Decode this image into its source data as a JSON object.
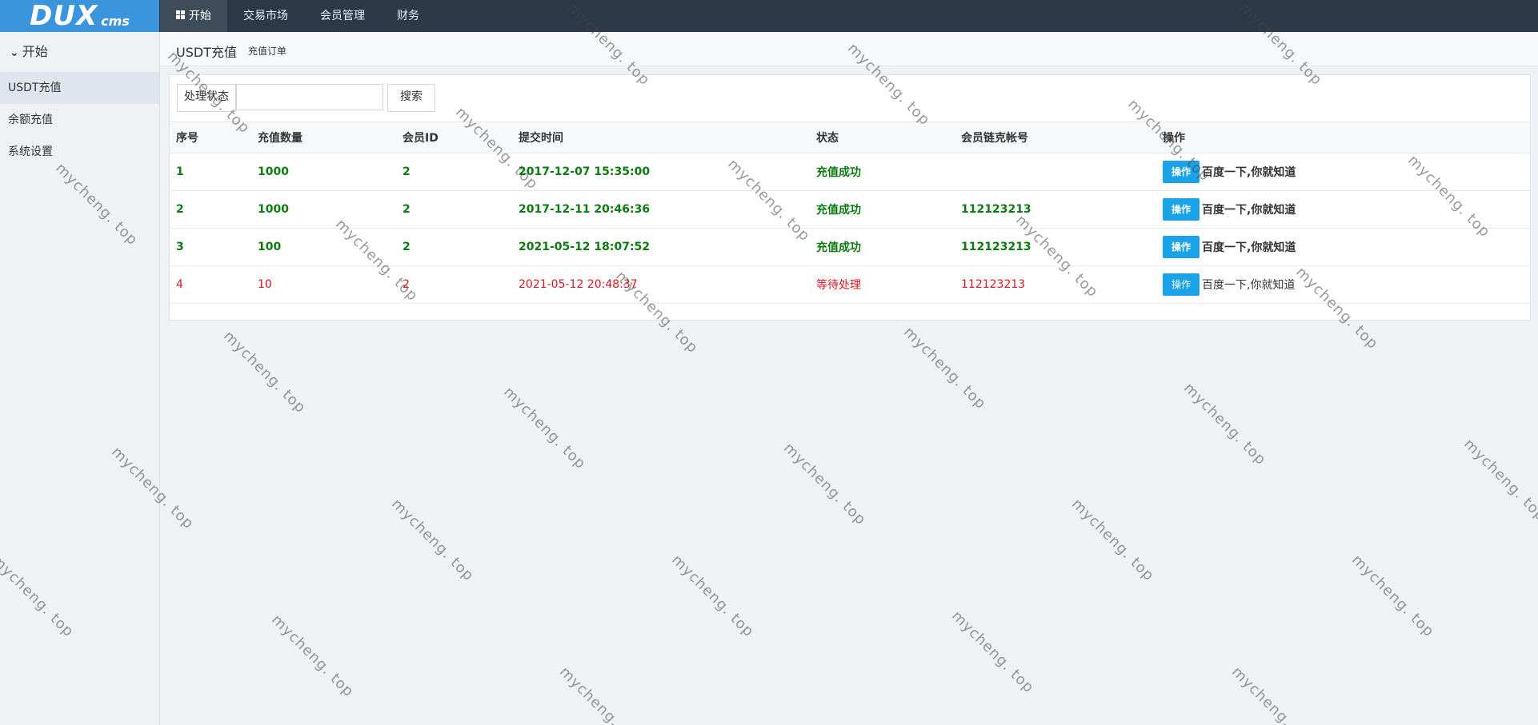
{
  "app": {
    "logo_main": "DUX",
    "logo_sub": "cms"
  },
  "topnav": [
    {
      "label": "开始",
      "icon": "windows-icon",
      "active": true
    },
    {
      "label": "交易市场"
    },
    {
      "label": "会员管理"
    },
    {
      "label": "财务"
    }
  ],
  "sidebar": {
    "title": "开始",
    "items": [
      {
        "label": "USDT充值",
        "active": true
      },
      {
        "label": "余额充值"
      },
      {
        "label": "系统设置"
      }
    ]
  },
  "page": {
    "title": "USDT充值",
    "subtitle": "充值订单"
  },
  "toolbar": {
    "status_label": "处理状态",
    "search_value": "",
    "search_label": "搜索"
  },
  "table": {
    "headers": [
      "序号",
      "充值数量",
      "会员ID",
      "提交时间",
      "状态",
      "会员链克帐号",
      "操作"
    ],
    "rows": [
      {
        "id": "1",
        "amount": "1000",
        "member_id": "2",
        "time": "2017-12-07 15:35:00",
        "status": "充值成功",
        "account": "",
        "action": "操作",
        "link": "百度一下,你就知道"
      },
      {
        "id": "2",
        "amount": "1000",
        "member_id": "2",
        "time": "2017-12-11 20:46:36",
        "status": "充值成功",
        "account": "112123213",
        "action": "操作",
        "link": "百度一下,你就知道"
      },
      {
        "id": "3",
        "amount": "100",
        "member_id": "2",
        "time": "2021-05-12 18:07:52",
        "status": "充值成功",
        "account": "112123213",
        "action": "操作",
        "link": "百度一下,你就知道"
      },
      {
        "id": "4",
        "amount": "10",
        "member_id": "2",
        "time": "2021-05-12 20:48:37",
        "status": "等待处理",
        "account": "112123213",
        "action": "操作",
        "link": "百度一下,你就知道"
      }
    ]
  },
  "watermark": "mycheng. top",
  "colors": {
    "topbar": "#2c3a48",
    "logo_bg": "#3a95dc",
    "success": "#0b7a10",
    "pending": "#e0161d",
    "action_btn": "#1aa3e8"
  }
}
